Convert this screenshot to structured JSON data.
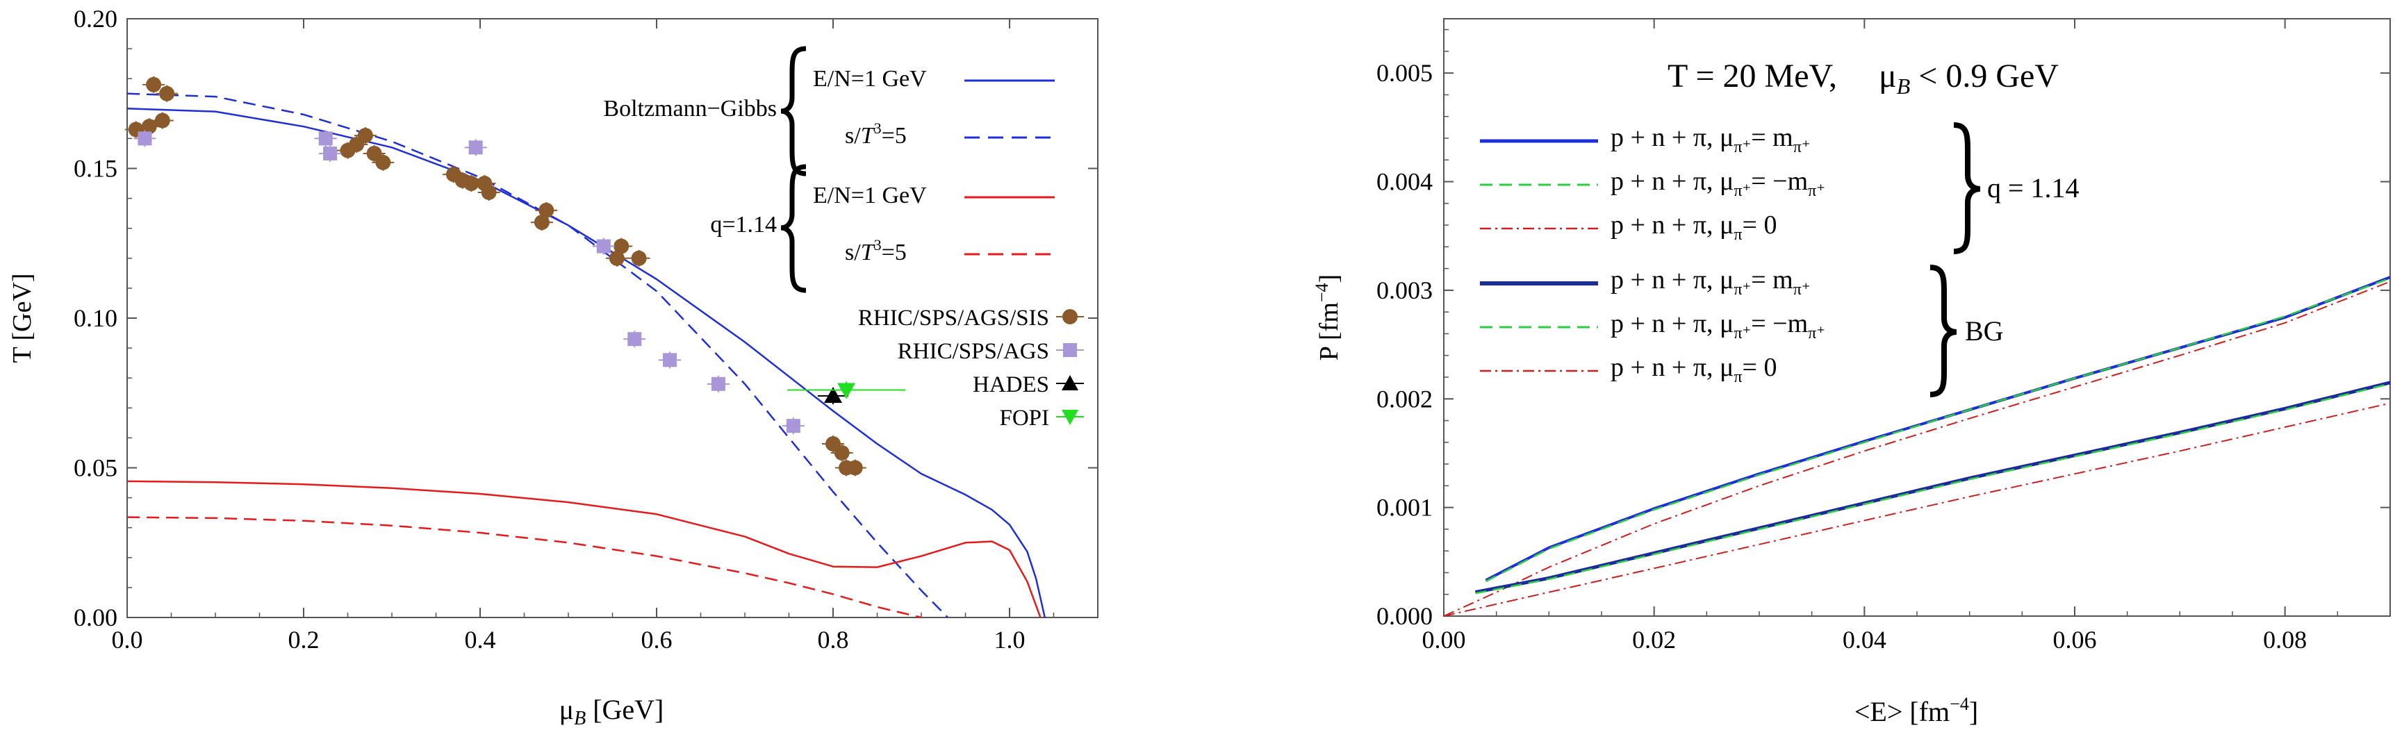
{
  "chart_data": [
    {
      "type": "line+scatter",
      "xlabel": "μ_B [GeV]",
      "ylabel": "T [GeV]",
      "xlim": [
        0,
        1.1
      ],
      "ylim": [
        0,
        0.2
      ],
      "xticks": [
        "0.0",
        "0.2",
        "0.4",
        "0.6",
        "0.8",
        "1.0"
      ],
      "yticks": [
        "0.00",
        "0.05",
        "0.10",
        "0.15",
        "0.20"
      ],
      "legend_groups": [
        {
          "label": "Boltzmann−Gibbs",
          "entries": [
            "E/N=1 GeV",
            "s/T³=5"
          ]
        },
        {
          "label": "q=1.14",
          "entries": [
            "E/N=1 GeV",
            "s/T³=5"
          ]
        }
      ],
      "colors": {
        "bg": "#1f2fd6",
        "q": "#e41a1c",
        "brown": "#8b5a2b",
        "lavender": "#a896d8",
        "black": "#000000",
        "green": "#22dd22"
      },
      "series": [
        {
          "name": "BG E/N=1 GeV",
          "style": "solid",
          "color": "bg",
          "x": [
            0,
            0.1,
            0.2,
            0.3,
            0.4,
            0.5,
            0.6,
            0.7,
            0.8,
            0.85,
            0.9,
            0.95,
            0.98,
            1.0,
            1.02,
            1.03,
            1.04
          ],
          "y": [
            0.17,
            0.169,
            0.164,
            0.157,
            0.146,
            0.131,
            0.113,
            0.092,
            0.069,
            0.058,
            0.048,
            0.041,
            0.036,
            0.031,
            0.022,
            0.013,
            0.0
          ]
        },
        {
          "name": "BG s/T³=5",
          "style": "dashed",
          "color": "bg",
          "x": [
            0,
            0.1,
            0.2,
            0.3,
            0.4,
            0.5,
            0.6,
            0.7,
            0.75,
            0.8,
            0.85,
            0.9,
            0.93
          ],
          "y": [
            0.175,
            0.174,
            0.168,
            0.159,
            0.147,
            0.131,
            0.109,
            0.078,
            0.06,
            0.042,
            0.025,
            0.009,
            0.0
          ]
        },
        {
          "name": "q E/N=1 GeV",
          "style": "solid",
          "color": "q",
          "x": [
            0,
            0.1,
            0.2,
            0.3,
            0.4,
            0.5,
            0.6,
            0.7,
            0.75,
            0.8,
            0.85,
            0.9,
            0.95,
            0.98,
            1.0,
            1.02,
            1.035
          ],
          "y": [
            0.0455,
            0.0452,
            0.0445,
            0.0432,
            0.0413,
            0.0385,
            0.0345,
            0.027,
            0.0213,
            0.017,
            0.0168,
            0.0205,
            0.025,
            0.0254,
            0.0225,
            0.012,
            0.0
          ]
        },
        {
          "name": "q s/T³=5",
          "style": "dashed",
          "color": "q",
          "x": [
            0,
            0.1,
            0.2,
            0.3,
            0.4,
            0.5,
            0.6,
            0.7,
            0.75,
            0.8,
            0.85,
            0.9
          ],
          "y": [
            0.0335,
            0.0332,
            0.0323,
            0.0307,
            0.0283,
            0.025,
            0.0205,
            0.0148,
            0.0115,
            0.0078,
            0.0035,
            0.0
          ]
        }
      ],
      "scatter": [
        {
          "name": "RHIC/SPS/AGS/SIS",
          "marker": "circle",
          "color": "brown",
          "points": [
            [
              0.03,
              0.178
            ],
            [
              0.045,
              0.175
            ],
            [
              0.01,
              0.163
            ],
            [
              0.025,
              0.164
            ],
            [
              0.04,
              0.166
            ],
            [
              0.25,
              0.156
            ],
            [
              0.26,
              0.158
            ],
            [
              0.27,
              0.161
            ],
            [
              0.28,
              0.155
            ],
            [
              0.29,
              0.152
            ],
            [
              0.37,
              0.148
            ],
            [
              0.38,
              0.146
            ],
            [
              0.39,
              0.145
            ],
            [
              0.405,
              0.145
            ],
            [
              0.41,
              0.142
            ],
            [
              0.475,
              0.136
            ],
            [
              0.47,
              0.132
            ],
            [
              0.56,
              0.124
            ],
            [
              0.555,
              0.12
            ],
            [
              0.58,
              0.12
            ],
            [
              0.8,
              0.058
            ],
            [
              0.81,
              0.055
            ],
            [
              0.815,
              0.05
            ],
            [
              0.825,
              0.05
            ]
          ]
        },
        {
          "name": "RHIC/SPS/AGS",
          "marker": "square",
          "color": "lavender",
          "points": [
            [
              0.02,
              0.16
            ],
            [
              0.225,
              0.16
            ],
            [
              0.23,
              0.155
            ],
            [
              0.395,
              0.157
            ],
            [
              0.54,
              0.124
            ],
            [
              0.575,
              0.093
            ],
            [
              0.615,
              0.086
            ],
            [
              0.67,
              0.078
            ],
            [
              0.755,
              0.064
            ]
          ]
        },
        {
          "name": "HADES",
          "marker": "triangle-up",
          "color": "black",
          "points": [
            [
              0.8,
              0.074
            ]
          ]
        },
        {
          "name": "FOPI",
          "marker": "triangle-down",
          "color": "green",
          "points": [
            [
              0.815,
              0.076
            ]
          ]
        }
      ]
    },
    {
      "type": "line",
      "title": "T = 20 MeV,     μ_B < 0.9 GeV",
      "xlabel": "<E> [fm⁻⁴]",
      "ylabel": "P [fm⁻⁴]",
      "xlim": [
        0,
        0.09
      ],
      "ylim": [
        0,
        0.0055
      ],
      "xticks": [
        "0.00",
        "0.02",
        "0.04",
        "0.06",
        "0.08"
      ],
      "yticks": [
        "0.000",
        "0.001",
        "0.002",
        "0.003",
        "0.004",
        "0.005"
      ],
      "legend_entries": [
        {
          "label": "p + n + π,  μπ⁺= mπ⁺",
          "style": "solid",
          "color": "#1f2fd6"
        },
        {
          "label": "p + n + π,  μπ⁺= −mπ⁺",
          "style": "dashed",
          "color": "#2ecc40"
        },
        {
          "label": "p + n + π,  μπ= 0",
          "style": "dashdot",
          "color": "#cc1f1f"
        },
        {
          "label": "p + n + π,  μπ⁺= mπ⁺",
          "style": "solid-thick",
          "color": "#1c2a9c"
        },
        {
          "label": "p + n + π,  μπ⁺= −mπ⁺",
          "style": "dashed",
          "color": "#2ecc40"
        },
        {
          "label": "p + n + π,  μπ= 0",
          "style": "dashdot",
          "color": "#cc1f1f"
        }
      ],
      "legend_group_labels": [
        "q = 1.14",
        "BG"
      ],
      "series": [
        {
          "name": "q=1.14 μπ⁺=mπ⁺",
          "x": [
            0.004,
            0.01,
            0.02,
            0.03,
            0.04,
            0.05,
            0.06,
            0.07,
            0.08,
            0.09
          ],
          "y": [
            0.00033,
            0.00063,
            0.00099,
            0.00131,
            0.00161,
            0.0019,
            0.00219,
            0.00247,
            0.00275,
            0.00312
          ]
        },
        {
          "name": "q=1.14 μπ⁺=−mπ⁺",
          "x": [
            0.004,
            0.01,
            0.02,
            0.03,
            0.04,
            0.05,
            0.06,
            0.07,
            0.08,
            0.09
          ],
          "y": [
            0.00032,
            0.00062,
            0.00098,
            0.0013,
            0.0016,
            0.0019,
            0.00219,
            0.00247,
            0.00276,
            0.00311
          ]
        },
        {
          "name": "q=1.14 μπ=0",
          "x": [
            0.0,
            0.005,
            0.01,
            0.02,
            0.03,
            0.04,
            0.05,
            0.06,
            0.07,
            0.08,
            0.09
          ],
          "y": [
            0.0,
            0.00022,
            0.00045,
            0.00085,
            0.0012,
            0.00152,
            0.00182,
            0.00211,
            0.0024,
            0.0027,
            0.00308
          ]
        },
        {
          "name": "BG μπ⁺=mπ⁺",
          "x": [
            0.003,
            0.01,
            0.02,
            0.03,
            0.04,
            0.05,
            0.06,
            0.07,
            0.08,
            0.09
          ],
          "y": [
            0.00022,
            0.00035,
            0.00058,
            0.00081,
            0.00104,
            0.00127,
            0.00148,
            0.00169,
            0.00191,
            0.00215
          ]
        },
        {
          "name": "BG μπ⁺=−mπ⁺",
          "x": [
            0.003,
            0.01,
            0.02,
            0.03,
            0.04,
            0.05,
            0.06,
            0.07,
            0.08,
            0.09
          ],
          "y": [
            0.00021,
            0.00034,
            0.00057,
            0.0008,
            0.00103,
            0.00126,
            0.00147,
            0.00168,
            0.0019,
            0.00214
          ]
        },
        {
          "name": "BG μπ=0",
          "x": [
            0.0,
            0.01,
            0.02,
            0.03,
            0.04,
            0.05,
            0.06,
            0.07,
            0.08,
            0.09
          ],
          "y": [
            0.0,
            0.00022,
            0.00044,
            0.00066,
            0.00088,
            0.0011,
            0.00131,
            0.00152,
            0.00174,
            0.00196
          ]
        }
      ]
    }
  ]
}
